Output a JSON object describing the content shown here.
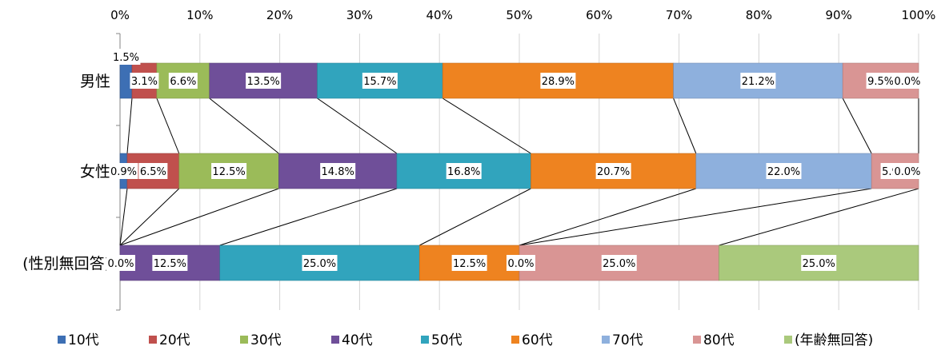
{
  "chart_data": {
    "type": "bar",
    "stacked": true,
    "orientation": "horizontal",
    "percent": true,
    "xlim": [
      0,
      100
    ],
    "x_ticks": [
      "0%",
      "10%",
      "20%",
      "30%",
      "40%",
      "50%",
      "60%",
      "70%",
      "80%",
      "90%",
      "100%"
    ],
    "categories": [
      "男性",
      "女性",
      "(性別無回答)"
    ],
    "legend_position": "bottom",
    "series_lines": true,
    "series": [
      {
        "name": "10代",
        "color": "#3d6fb4",
        "values": [
          1.5,
          0.9,
          0.0
        ],
        "labels": [
          "1.5%",
          "0.9%",
          "0.0%"
        ]
      },
      {
        "name": "20代",
        "color": "#c0504d",
        "values": [
          3.1,
          6.5,
          0.0
        ],
        "labels": [
          "3.1%",
          "6.5%",
          ""
        ]
      },
      {
        "name": "30代",
        "color": "#9bbb59",
        "values": [
          6.6,
          12.5,
          0.0
        ],
        "labels": [
          "6.6%",
          "12.5%",
          ""
        ]
      },
      {
        "name": "40代",
        "color": "#6f4f99",
        "values": [
          13.5,
          14.8,
          12.5
        ],
        "labels": [
          "13.5%",
          "14.8%",
          "12.5%"
        ]
      },
      {
        "name": "50代",
        "color": "#31a4bd",
        "values": [
          15.7,
          16.8,
          25.0
        ],
        "labels": [
          "15.7%",
          "16.8%",
          "25.0%"
        ]
      },
      {
        "name": "60代",
        "color": "#ee8320",
        "values": [
          28.9,
          20.7,
          12.5
        ],
        "labels": [
          "28.9%",
          "20.7%",
          "12.5%"
        ]
      },
      {
        "name": "70代",
        "color": "#8eb0dd",
        "values": [
          21.2,
          22.0,
          0.0
        ],
        "labels": [
          "21.2%",
          "22.0%",
          "0.0%"
        ]
      },
      {
        "name": "80代",
        "color": "#d99594",
        "values": [
          9.5,
          5.9,
          25.0
        ],
        "labels": [
          "9.5%",
          "5.9%",
          "25.0%"
        ]
      },
      {
        "name": "(年齢無回答)",
        "color": "#aac97c",
        "values": [
          0.0,
          0.0,
          25.0
        ],
        "labels": [
          "0.0%",
          "0.0%",
          "25.0%"
        ]
      }
    ]
  }
}
